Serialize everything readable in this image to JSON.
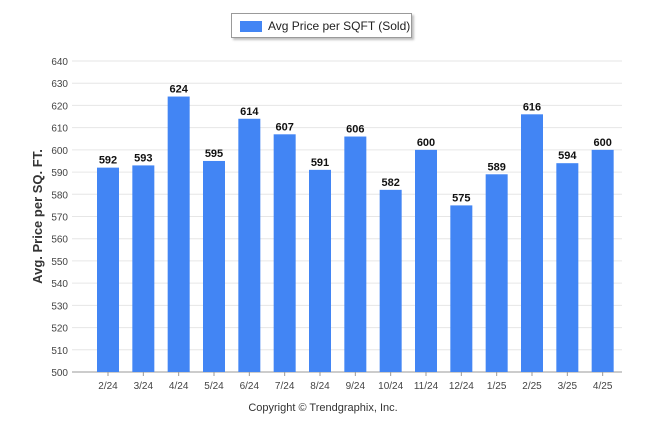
{
  "chart_data": {
    "type": "bar",
    "categories": [
      "2/24",
      "3/24",
      "4/24",
      "5/24",
      "6/24",
      "7/24",
      "8/24",
      "9/24",
      "10/24",
      "11/24",
      "12/24",
      "1/25",
      "2/25",
      "3/25",
      "4/25"
    ],
    "series": [
      {
        "name": "Avg Price per SQFT (Sold)",
        "values": [
          592,
          593,
          624,
          595,
          614,
          607,
          591,
          606,
          582,
          600,
          575,
          589,
          616,
          594,
          600
        ]
      }
    ],
    "ylabel": "Avg. Price per SQ. FT.",
    "xlabel": "",
    "ylim": [
      500,
      640
    ],
    "yticks": [
      500,
      510,
      520,
      530,
      540,
      550,
      560,
      570,
      580,
      590,
      600,
      610,
      620,
      630,
      640
    ],
    "grid": true,
    "legend_position": "top-center",
    "bar_color": "#4285f4"
  },
  "footer": {
    "copyright": "Copyright © Trendgraphix, Inc."
  }
}
